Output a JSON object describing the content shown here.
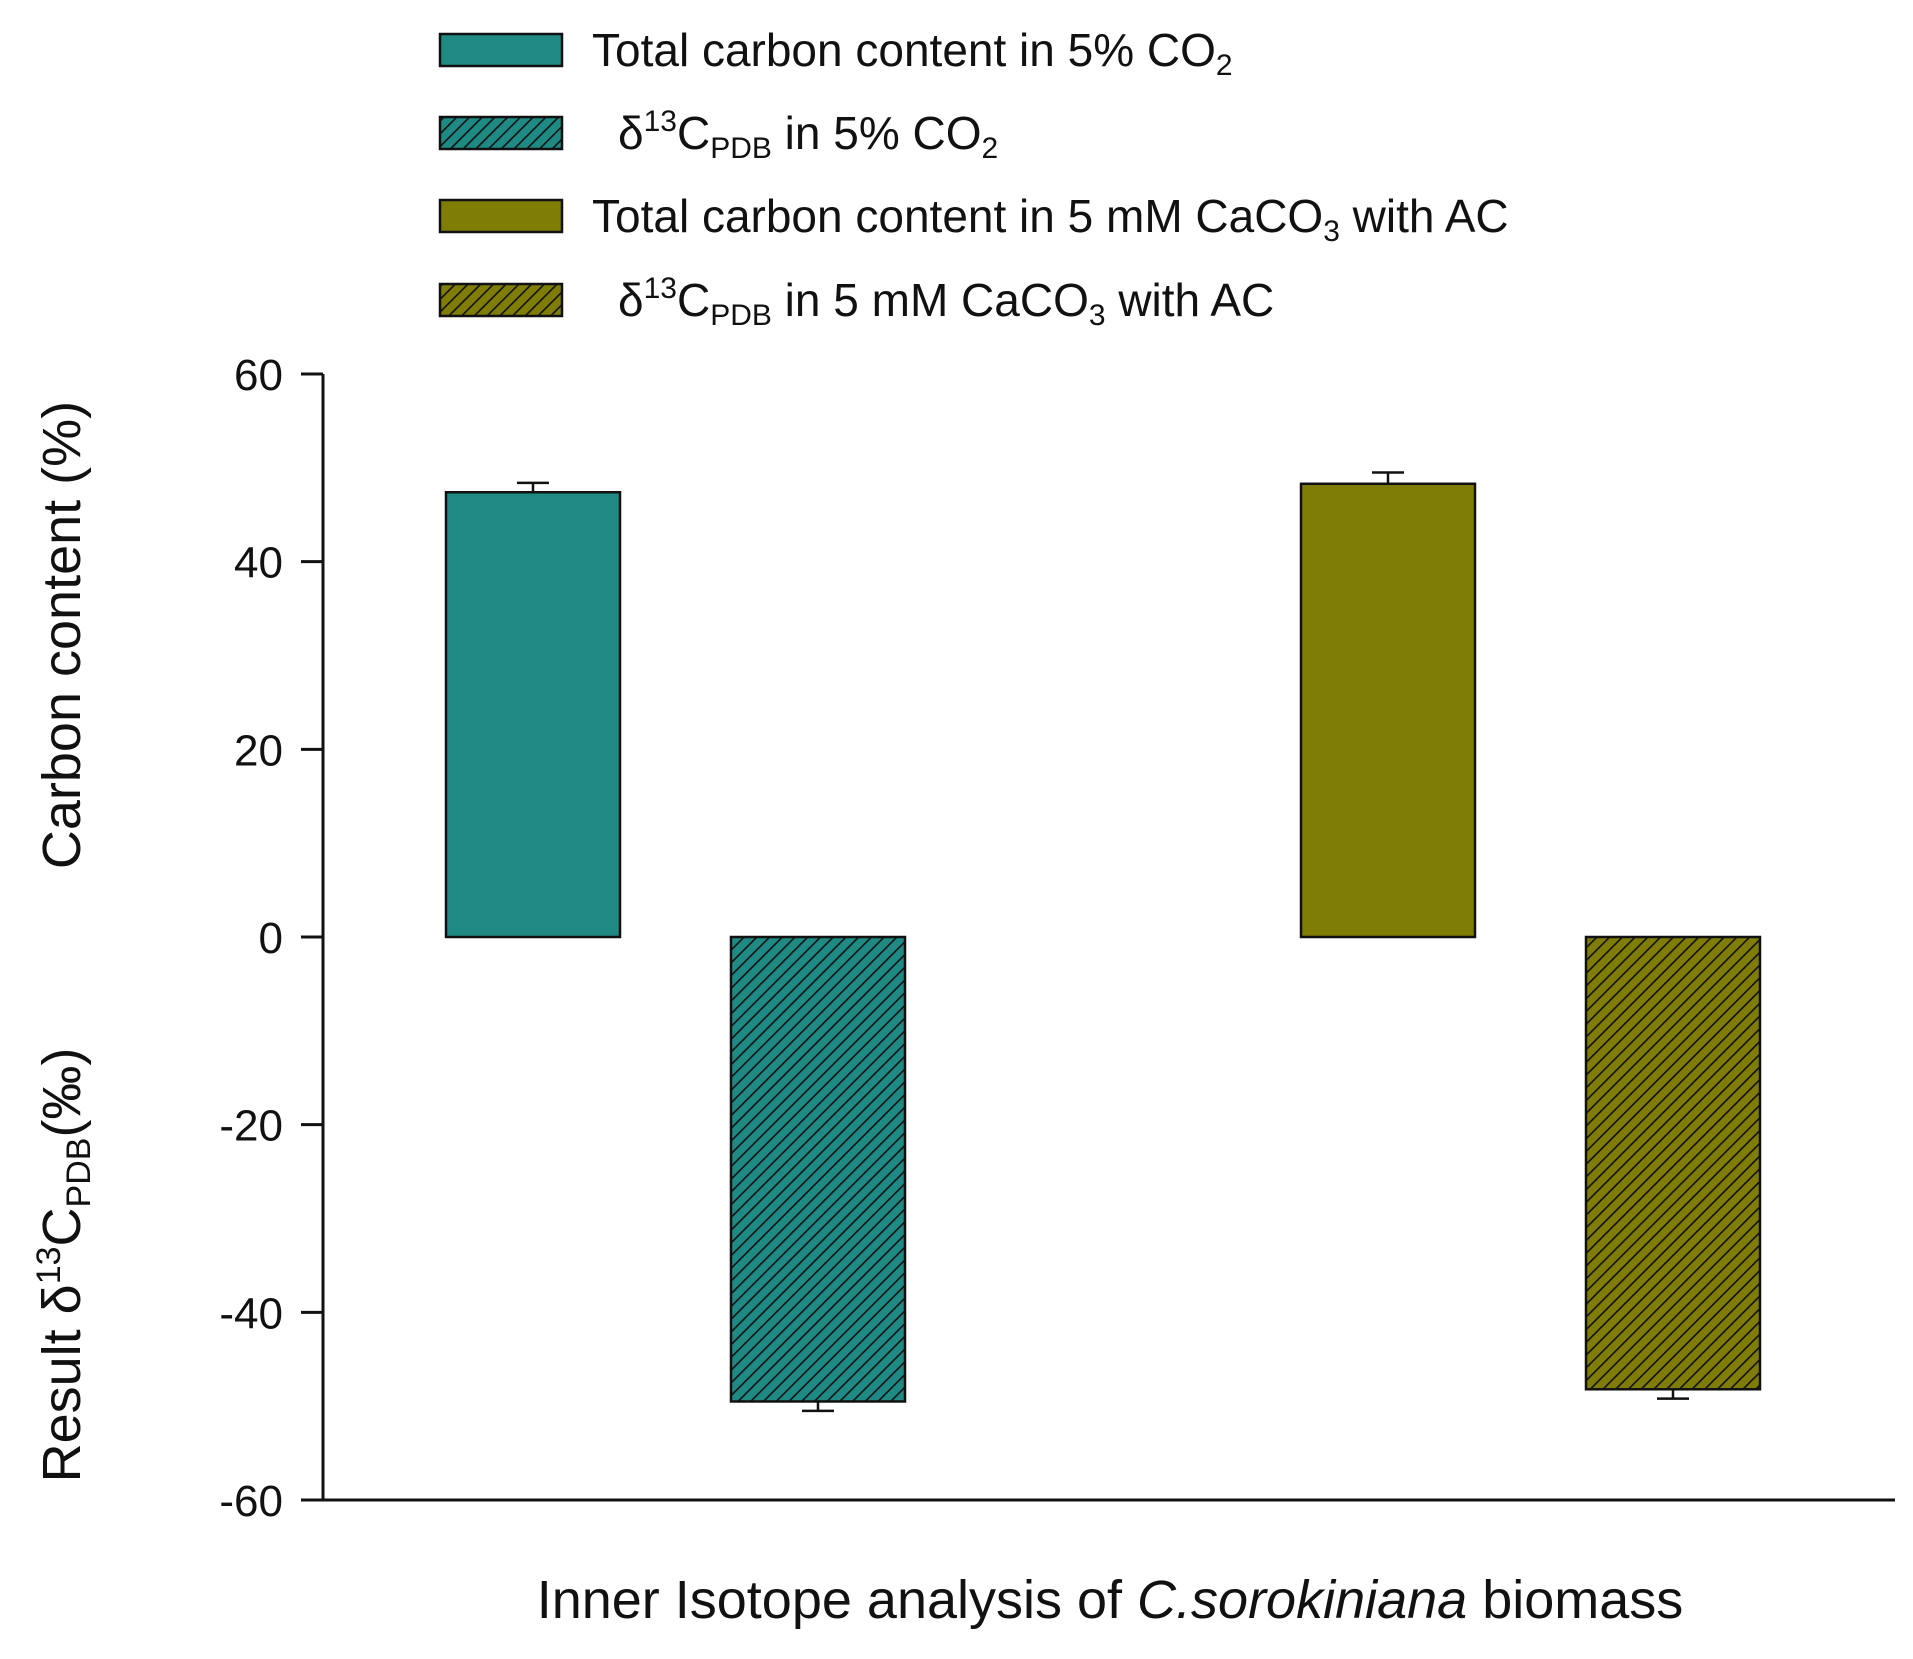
{
  "chart_data": {
    "type": "bar",
    "xlabel_prefix": "Inner Isotope analysis of ",
    "xlabel_italic": "C.sorokiniana",
    "xlabel_suffix": " biomass",
    "ylabel_top": "Carbon content (%)",
    "ylabel_bottom": {
      "prefix": "Result  δ",
      "sup": "13",
      "base": "C",
      "sub": "PDB",
      "suffix": "(‰)"
    },
    "ylim": [
      -60,
      60
    ],
    "yticks": [
      60,
      40,
      20,
      0,
      -20,
      -40,
      -60
    ],
    "grid": false,
    "legend_position": "top",
    "series": [
      {
        "key": "tc_co2",
        "legend": [
          {
            "t": "Total carbon content in 5% CO",
            "s": "n"
          },
          {
            "t": "2",
            "s": "sub"
          }
        ],
        "value": 47.4,
        "error": 1.0,
        "color": "#1f8a84",
        "hatched": false
      },
      {
        "key": "d13c_co2",
        "legend": [
          {
            "t": "δ",
            "s": "n"
          },
          {
            "t": "13",
            "s": "sup"
          },
          {
            "t": "C",
            "s": "n"
          },
          {
            "t": "PDB",
            "s": "sub"
          },
          {
            "t": " in 5% CO",
            "s": "n"
          },
          {
            "t": "2",
            "s": "sub"
          }
        ],
        "value": -49.5,
        "error": 1.0,
        "color": "#1f8a84",
        "hatched": true
      },
      {
        "key": "tc_caco3",
        "legend": [
          {
            "t": "Total carbon content in 5 mM CaCO",
            "s": "n"
          },
          {
            "t": "3",
            "s": "sub"
          },
          {
            "t": " with AC",
            "s": "n"
          }
        ],
        "value": 48.3,
        "error": 1.2,
        "color": "#7f7d06",
        "hatched": false
      },
      {
        "key": "d13c_caco3",
        "legend": [
          {
            "t": "δ",
            "s": "n"
          },
          {
            "t": "13",
            "s": "sup"
          },
          {
            "t": "C",
            "s": "n"
          },
          {
            "t": "PDB",
            "s": "sub"
          },
          {
            "t": " in 5 mM CaCO",
            "s": "n"
          },
          {
            "t": "3",
            "s": "sub"
          },
          {
            "t": " with AC",
            "s": "n"
          }
        ],
        "value": -48.2,
        "error": 1.0,
        "color": "#7f7d06",
        "hatched": true
      }
    ]
  }
}
